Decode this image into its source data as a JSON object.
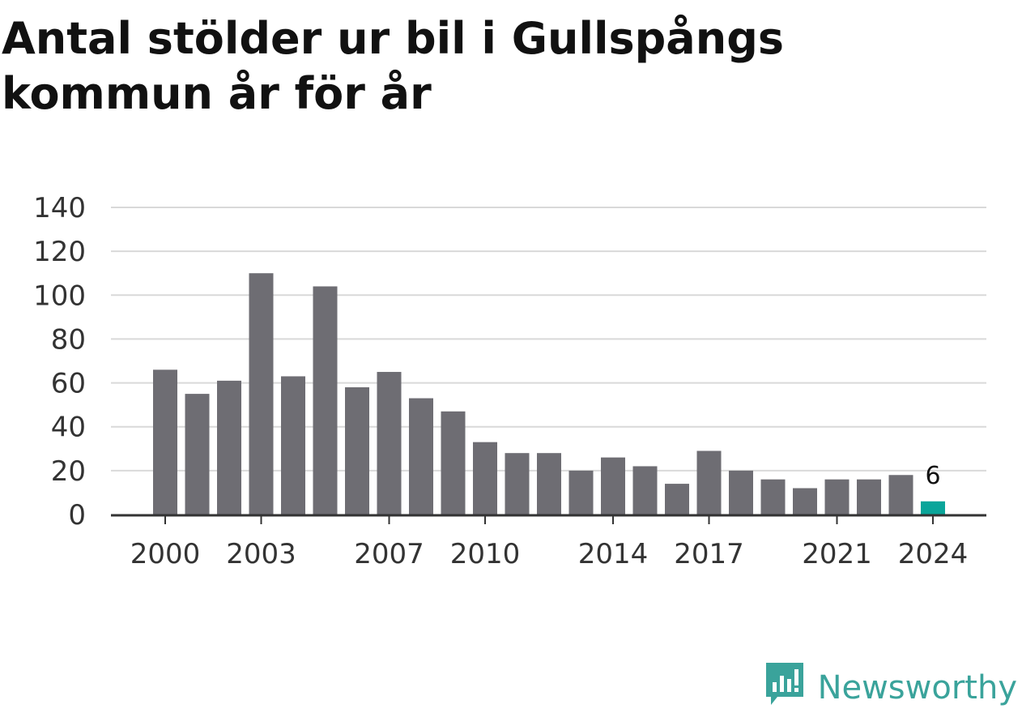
{
  "title": "Antal stölder ur bil i Gullspångs kommun år för år",
  "brand": {
    "name": "Newsworthy",
    "icon": "newsworthy-logo-icon",
    "color": "#3aa39b"
  },
  "colors": {
    "bar": "#6e6d73",
    "highlight": "#0aa59a",
    "grid": "#d9d9d9",
    "axis": "#333333"
  },
  "chart_data": {
    "type": "bar",
    "title": "Antal stölder ur bil i Gullspångs kommun år för år",
    "xlabel": "",
    "ylabel": "",
    "ylim": [
      0,
      140
    ],
    "yticks": [
      0,
      20,
      40,
      60,
      80,
      100,
      120,
      140
    ],
    "grid": true,
    "categories": [
      "2000",
      "2001",
      "2002",
      "2003",
      "2004",
      "2005",
      "2006",
      "2007",
      "2008",
      "2009",
      "2010",
      "2011",
      "2012",
      "2013",
      "2014",
      "2015",
      "2016",
      "2017",
      "2018",
      "2019",
      "2020",
      "2021",
      "2022",
      "2023",
      "2024"
    ],
    "values": [
      66,
      55,
      61,
      110,
      63,
      104,
      58,
      65,
      53,
      47,
      33,
      28,
      28,
      20,
      26,
      22,
      14,
      29,
      20,
      16,
      12,
      16,
      16,
      18,
      6
    ],
    "xtick_labels": [
      "2000",
      "2003",
      "2007",
      "2010",
      "2014",
      "2017",
      "2021",
      "2024"
    ],
    "highlight": {
      "category": "2024",
      "label": "6"
    }
  }
}
